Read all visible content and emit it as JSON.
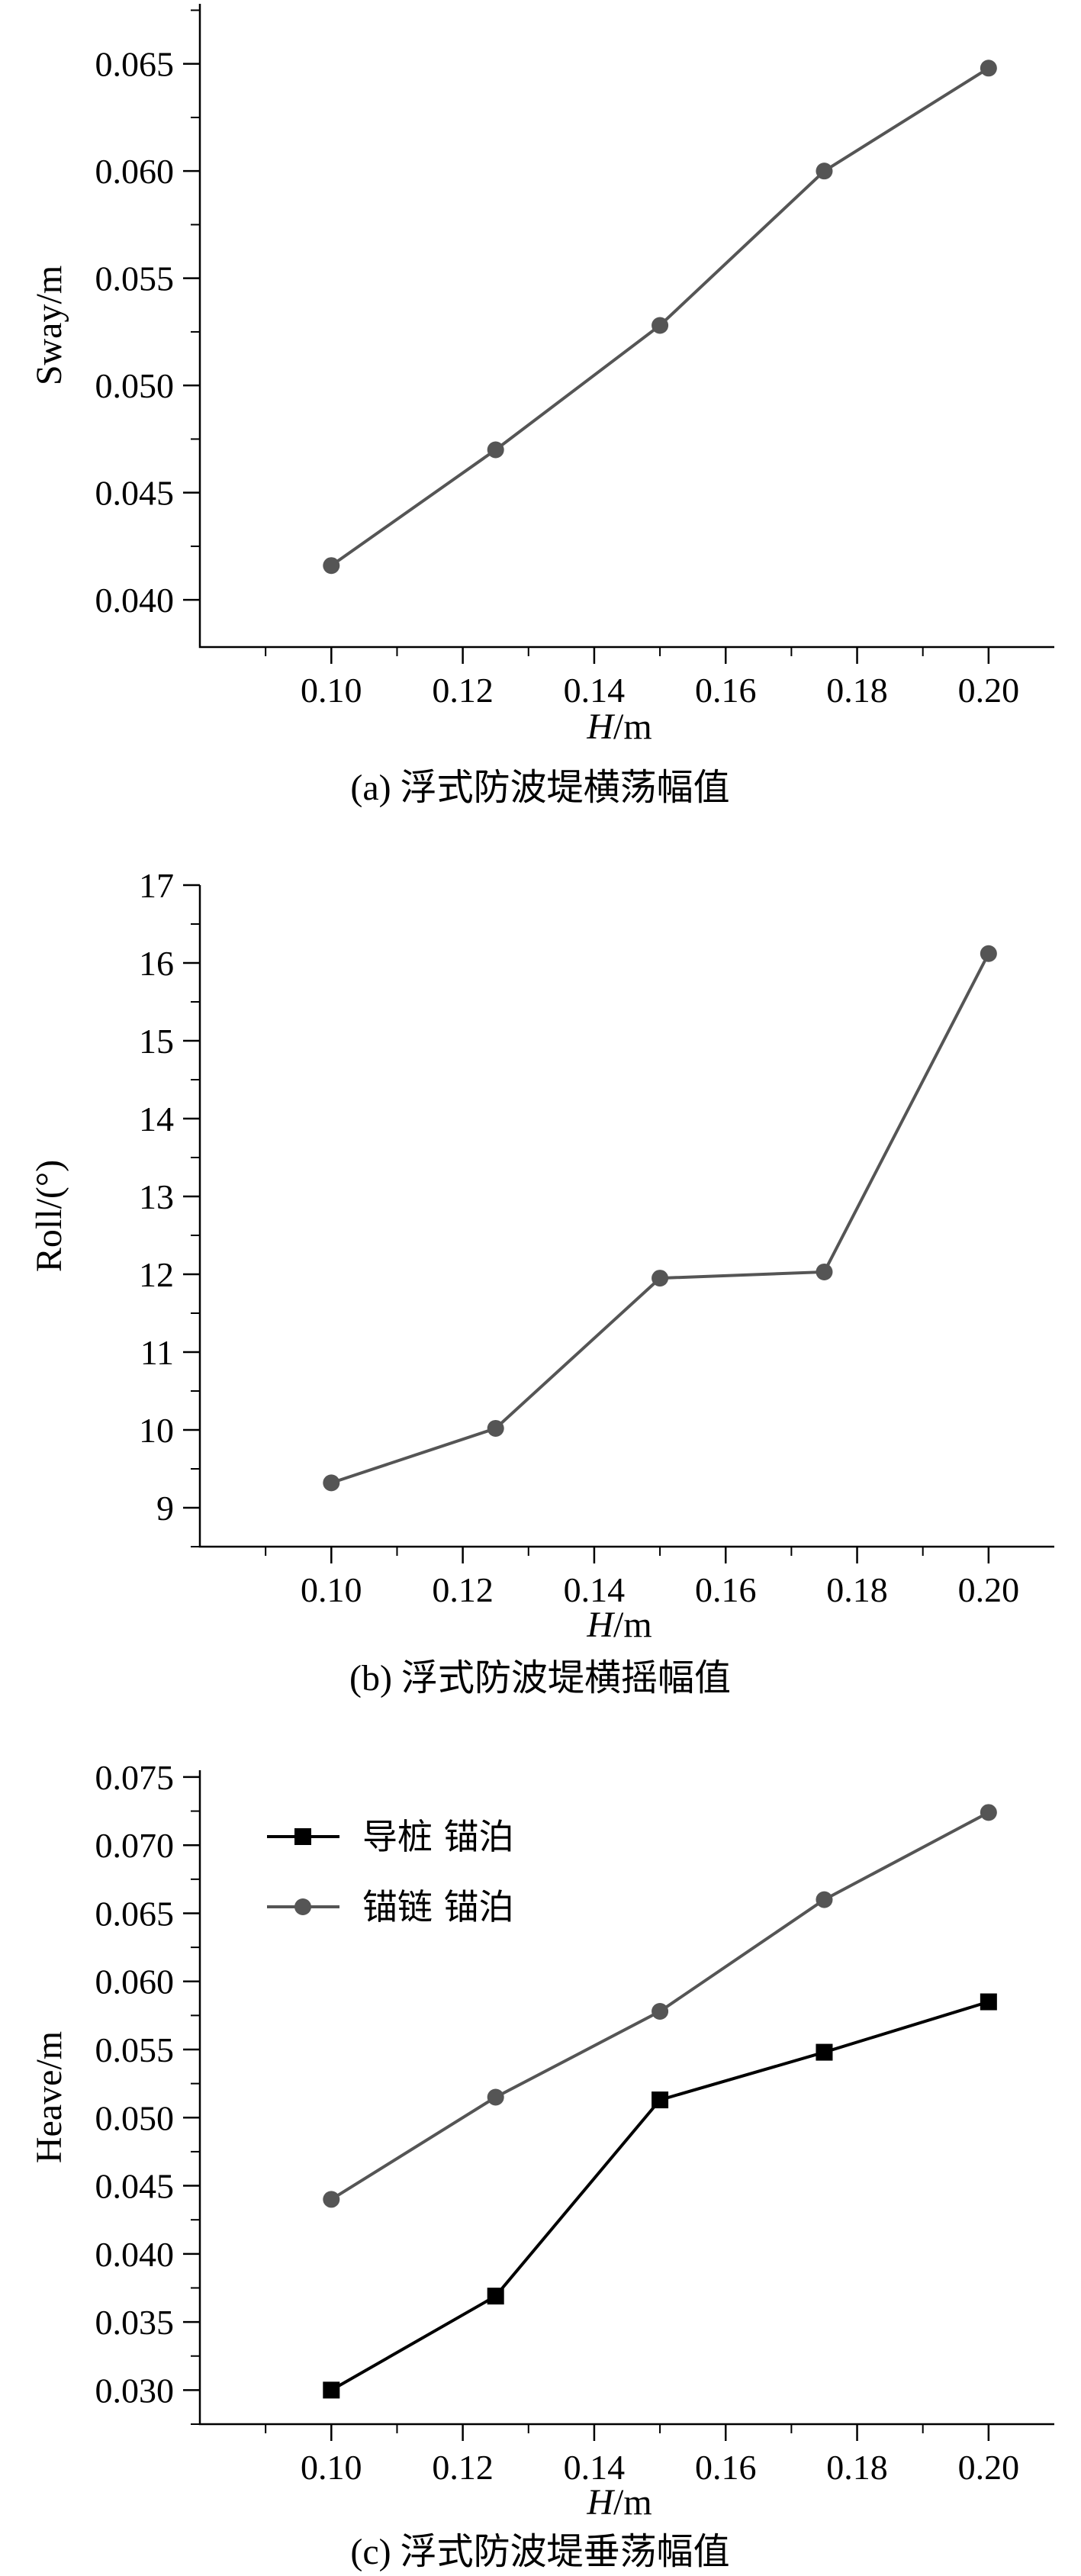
{
  "chart_data": [
    {
      "type": "line",
      "xlabel_italic": "H",
      "xlabel_rest": "/m",
      "ylabel": "Sway/m",
      "caption": "(a) 浮式防波堤横荡幅值",
      "xlim": [
        0.08,
        0.21
      ],
      "ylim": [
        0.0378,
        0.0678
      ],
      "xticks": [
        "0.10",
        "0.12",
        "0.14",
        "0.16",
        "0.18",
        "0.20"
      ],
      "yticks": [
        "0.040",
        "0.045",
        "0.050",
        "0.055",
        "0.060",
        "0.065"
      ],
      "series": [
        {
          "x": [
            0.1,
            0.125,
            0.15,
            0.175,
            0.2
          ],
          "y": [
            0.0416,
            0.047,
            0.0528,
            0.06,
            0.0648
          ],
          "color": "#555555",
          "marker": "circle"
        }
      ]
    },
    {
      "type": "line",
      "xlabel_italic": "H",
      "xlabel_rest": "/m",
      "ylabel": "Roll/(°)",
      "caption": "(b) 浮式防波堤横摇幅值",
      "xlim": [
        0.08,
        0.21
      ],
      "ylim": [
        8.5,
        17.0
      ],
      "xticks": [
        "0.10",
        "0.12",
        "0.14",
        "0.16",
        "0.18",
        "0.20"
      ],
      "yticks": [
        "9",
        "10",
        "11",
        "12",
        "13",
        "14",
        "15",
        "16",
        "17"
      ],
      "series": [
        {
          "x": [
            0.1,
            0.125,
            0.15,
            0.175,
            0.2
          ],
          "y": [
            9.32,
            10.02,
            11.95,
            12.03,
            16.12
          ],
          "color": "#555555",
          "marker": "circle"
        }
      ]
    },
    {
      "type": "line",
      "xlabel_italic": "H",
      "xlabel_rest": "/m",
      "ylabel": "Heave/m",
      "caption": "(c) 浮式防波堤垂荡幅值",
      "xlim": [
        0.08,
        0.21
      ],
      "ylim": [
        0.0275,
        0.0755
      ],
      "xticks": [
        "0.10",
        "0.12",
        "0.14",
        "0.16",
        "0.18",
        "0.20"
      ],
      "yticks": [
        "0.030",
        "0.035",
        "0.040",
        "0.045",
        "0.050",
        "0.055",
        "0.060",
        "0.065",
        "0.070",
        "0.075"
      ],
      "legend_position": "top-left",
      "series": [
        {
          "name": "导桩  锚泊",
          "x": [
            0.1,
            0.125,
            0.15,
            0.175,
            0.2
          ],
          "y": [
            0.03,
            0.0369,
            0.0513,
            0.0548,
            0.0585
          ],
          "color": "#000000",
          "marker": "square"
        },
        {
          "name": "锚链  锚泊",
          "x": [
            0.1,
            0.125,
            0.15,
            0.175,
            0.2
          ],
          "y": [
            0.044,
            0.0515,
            0.0578,
            0.066,
            0.0724
          ],
          "color": "#555555",
          "marker": "circle"
        }
      ]
    }
  ]
}
